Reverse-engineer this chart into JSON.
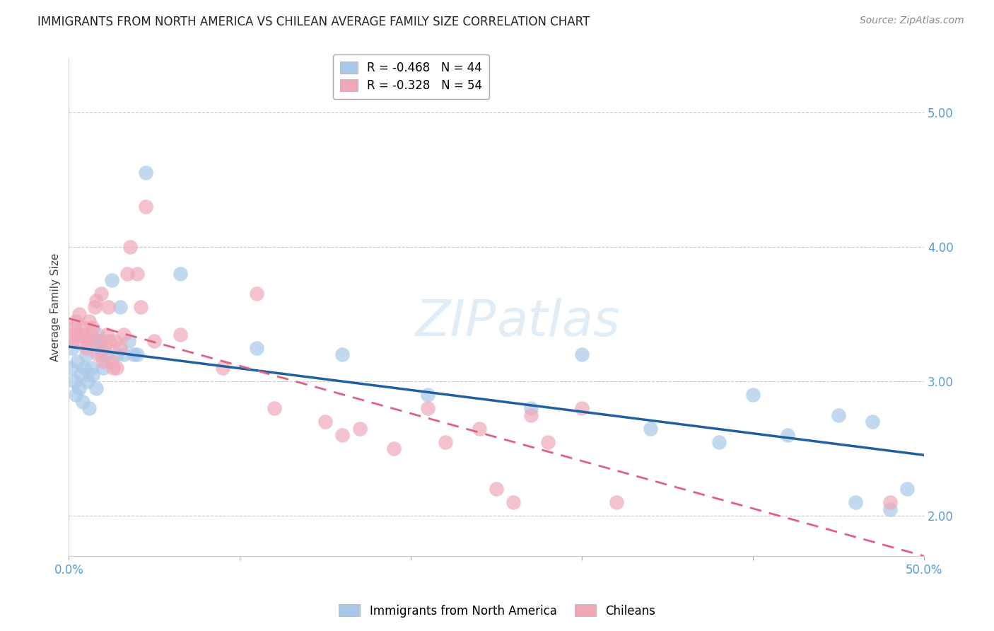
{
  "title": "IMMIGRANTS FROM NORTH AMERICA VS CHILEAN AVERAGE FAMILY SIZE CORRELATION CHART",
  "source": "Source: ZipAtlas.com",
  "ylabel": "Average Family Size",
  "yticks": [
    2.0,
    3.0,
    4.0,
    5.0
  ],
  "xlim": [
    0.0,
    0.5
  ],
  "ylim": [
    1.7,
    5.4
  ],
  "blue_legend_r": "R = -0.468",
  "blue_legend_n": "N = 44",
  "pink_legend_r": "R = -0.328",
  "pink_legend_n": "N = 54",
  "legend_label_blue": "Immigrants from North America",
  "legend_label_pink": "Chileans",
  "blue_scatter_x": [
    0.001,
    0.002,
    0.003,
    0.004,
    0.005,
    0.006,
    0.007,
    0.008,
    0.009,
    0.01,
    0.011,
    0.012,
    0.013,
    0.014,
    0.015,
    0.016,
    0.017,
    0.018,
    0.019,
    0.02,
    0.022,
    0.025,
    0.028,
    0.03,
    0.032,
    0.035,
    0.038,
    0.04,
    0.045,
    0.065,
    0.11,
    0.16,
    0.21,
    0.27,
    0.3,
    0.34,
    0.38,
    0.4,
    0.42,
    0.45,
    0.46,
    0.47,
    0.48,
    0.49
  ],
  "blue_scatter_y": [
    3.1,
    3.25,
    3.0,
    2.9,
    3.15,
    2.95,
    3.05,
    2.85,
    3.1,
    3.2,
    3.0,
    2.8,
    3.1,
    3.05,
    3.3,
    2.95,
    3.35,
    3.25,
    3.2,
    3.1,
    3.2,
    3.75,
    3.2,
    3.55,
    3.2,
    3.3,
    3.2,
    3.2,
    4.55,
    3.8,
    3.25,
    3.2,
    2.9,
    2.8,
    3.2,
    2.65,
    2.55,
    2.9,
    2.6,
    2.75,
    2.1,
    2.7,
    2.05,
    2.2
  ],
  "pink_scatter_x": [
    0.001,
    0.002,
    0.003,
    0.004,
    0.005,
    0.006,
    0.007,
    0.008,
    0.009,
    0.01,
    0.011,
    0.012,
    0.013,
    0.014,
    0.015,
    0.016,
    0.017,
    0.018,
    0.019,
    0.02,
    0.021,
    0.022,
    0.023,
    0.024,
    0.025,
    0.026,
    0.027,
    0.028,
    0.03,
    0.032,
    0.034,
    0.036,
    0.04,
    0.042,
    0.045,
    0.05,
    0.065,
    0.09,
    0.11,
    0.12,
    0.15,
    0.16,
    0.17,
    0.19,
    0.21,
    0.22,
    0.24,
    0.25,
    0.26,
    0.27,
    0.28,
    0.3,
    0.32,
    0.48
  ],
  "pink_scatter_y": [
    3.35,
    3.3,
    3.4,
    3.45,
    3.35,
    3.5,
    3.3,
    3.35,
    3.4,
    3.25,
    3.3,
    3.45,
    3.35,
    3.4,
    3.55,
    3.6,
    3.2,
    3.3,
    3.65,
    3.15,
    3.25,
    3.35,
    3.55,
    3.3,
    3.15,
    3.1,
    3.3,
    3.1,
    3.25,
    3.35,
    3.8,
    4.0,
    3.8,
    3.55,
    4.3,
    3.3,
    3.35,
    3.1,
    3.65,
    2.8,
    2.7,
    2.6,
    2.65,
    2.5,
    2.8,
    2.55,
    2.65,
    2.2,
    2.1,
    2.75,
    2.55,
    2.8,
    2.1,
    2.1
  ],
  "blue_color": "#a8c8e8",
  "pink_color": "#f0a8b8",
  "blue_line_color": "#2060a0",
  "pink_line_color": "#e06080",
  "background_color": "#ffffff",
  "grid_color": "#c8c8c8",
  "axis_color": "#5b9bd5",
  "title_fontsize": 12,
  "source_fontsize": 10,
  "ylabel_fontsize": 11,
  "tick_fontsize": 12,
  "legend_fontsize": 12
}
